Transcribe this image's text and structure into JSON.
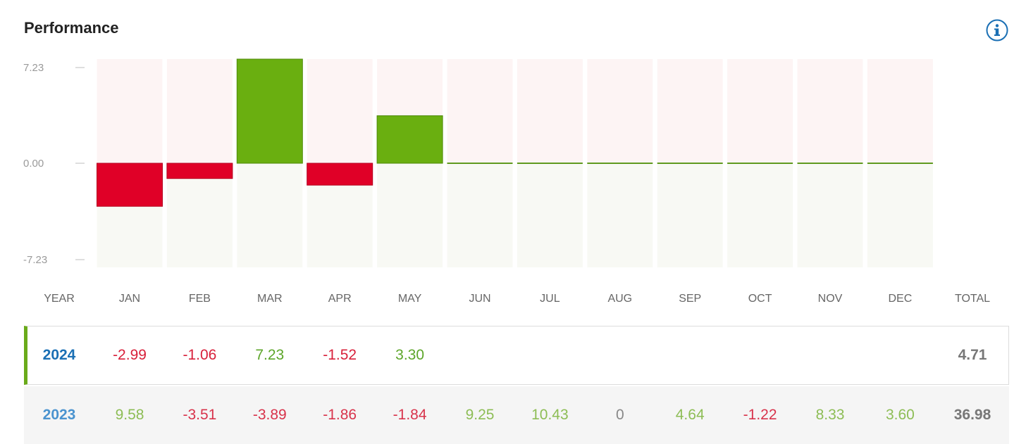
{
  "title": "Performance",
  "info_icon": "info-circle-icon",
  "colors": {
    "positive": "#6aaf10",
    "negative": "#e00027",
    "pos_bg": "#f8f9f4",
    "neg_bg": "#fdf4f4",
    "year_2024": "#1a6fb4",
    "year_2023": "#4a93cf"
  },
  "chart_data": {
    "type": "bar",
    "categories": [
      "JAN",
      "FEB",
      "MAR",
      "APR",
      "MAY",
      "JUN",
      "JUL",
      "AUG",
      "SEP",
      "OCT",
      "NOV",
      "DEC"
    ],
    "values": [
      -2.99,
      -1.06,
      7.23,
      -1.52,
      3.3,
      0,
      0,
      0,
      0,
      0,
      0,
      0
    ],
    "ylim": [
      -7.23,
      7.23
    ],
    "yticks": [
      "7.23",
      "0.00",
      "-7.23"
    ],
    "grid": false
  },
  "table": {
    "headers": [
      "YEAR",
      "JAN",
      "FEB",
      "MAR",
      "APR",
      "MAY",
      "JUN",
      "JUL",
      "AUG",
      "SEP",
      "OCT",
      "NOV",
      "DEC",
      "TOTAL"
    ],
    "rows": [
      {
        "year": "2024",
        "months": [
          "-2.99",
          "-1.06",
          "7.23",
          "-1.52",
          "3.30",
          "",
          "",
          "",
          "",
          "",
          "",
          ""
        ],
        "total": "4.71"
      },
      {
        "year": "2023",
        "months": [
          "9.58",
          "-3.51",
          "-3.89",
          "-1.86",
          "-1.84",
          "9.25",
          "10.43",
          "0",
          "4.64",
          "-1.22",
          "8.33",
          "3.60"
        ],
        "total": "36.98"
      }
    ]
  }
}
